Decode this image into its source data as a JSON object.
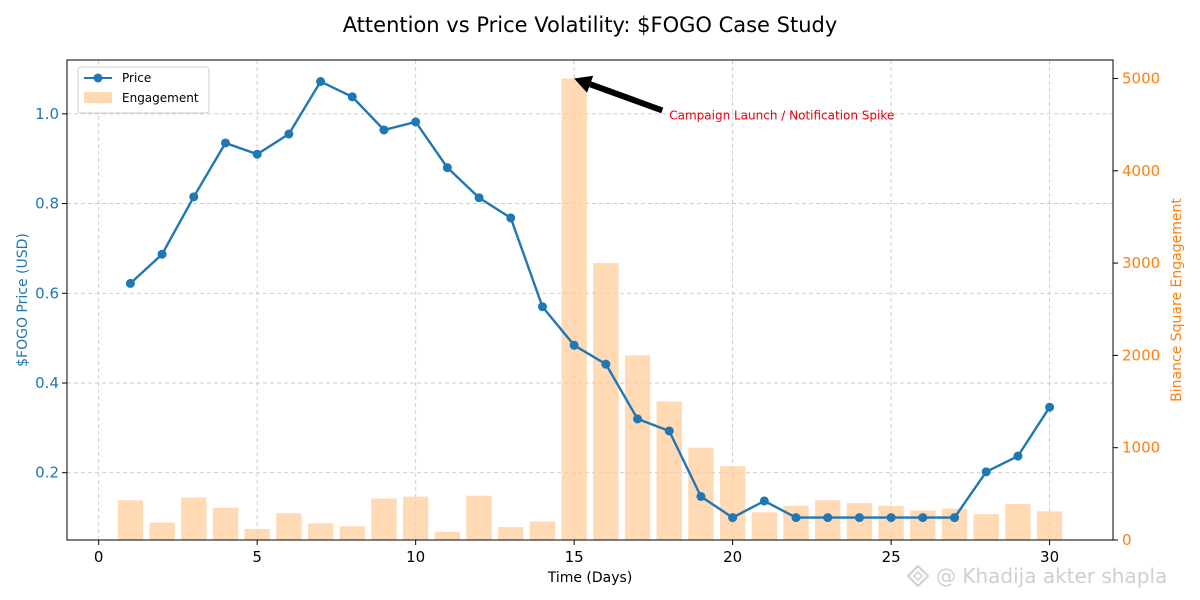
{
  "chart_data": {
    "type": "bar+line",
    "title": "Attention vs Price Volatility: $FOGO Case Study",
    "xlabel": "Time (Days)",
    "ylabel_left": "$FOGO Price (USD)",
    "ylabel_right": "Binance Square Engagement",
    "xlim": [
      -1,
      32
    ],
    "ylim_left": [
      0.05,
      1.12
    ],
    "ylim_right": [
      0,
      5200
    ],
    "x_ticks": [
      0,
      5,
      10,
      15,
      20,
      25,
      30
    ],
    "y_left_ticks": [
      0.2,
      0.4,
      0.6,
      0.8,
      1.0
    ],
    "y_left_tick_labels": [
      "0.2",
      "0.4",
      "0.6",
      "0.8",
      "1.0"
    ],
    "y_right_ticks": [
      0,
      1000,
      2000,
      3000,
      4000,
      5000
    ],
    "grid": true,
    "legend_position": "top-left",
    "series": [
      {
        "name": "Price",
        "kind": "line",
        "axis": "left",
        "color": "#1f77b4",
        "x": [
          1,
          2,
          3,
          4,
          5,
          6,
          7,
          8,
          9,
          10,
          11,
          12,
          13,
          14,
          15,
          16,
          17,
          18,
          19,
          20,
          21,
          22,
          23,
          24,
          25,
          26,
          27,
          28,
          29,
          30
        ],
        "values": [
          0.622,
          0.687,
          0.815,
          0.935,
          0.91,
          0.955,
          1.072,
          1.038,
          0.964,
          0.982,
          0.88,
          0.813,
          0.768,
          0.57,
          0.484,
          0.442,
          0.32,
          0.293,
          0.147,
          0.1,
          0.137,
          0.1,
          0.1,
          0.1,
          0.1,
          0.1,
          0.1,
          0.202,
          0.237,
          0.346
        ]
      },
      {
        "name": "Engagement",
        "kind": "bar",
        "axis": "right",
        "color": "#ffcc99",
        "x": [
          1,
          2,
          3,
          4,
          5,
          6,
          7,
          8,
          9,
          10,
          11,
          12,
          13,
          14,
          15,
          16,
          17,
          18,
          19,
          20,
          21,
          22,
          23,
          24,
          25,
          26,
          27,
          28,
          29,
          30
        ],
        "values": [
          430,
          190,
          460,
          350,
          120,
          290,
          180,
          150,
          450,
          470,
          90,
          480,
          140,
          200,
          5000,
          3000,
          2000,
          1500,
          1000,
          800,
          300,
          370,
          430,
          400,
          370,
          320,
          340,
          280,
          390,
          310
        ]
      }
    ],
    "annotation": {
      "text": "Campaign Launch / Notification Spike",
      "color": "#e8000b",
      "point_x": 15,
      "point_y_right": 5000,
      "text_x": 18,
      "text_y_right": 4600
    }
  },
  "watermark": {
    "text": "@ Khadija akter shapla",
    "icon": "binance-diamond-icon"
  }
}
